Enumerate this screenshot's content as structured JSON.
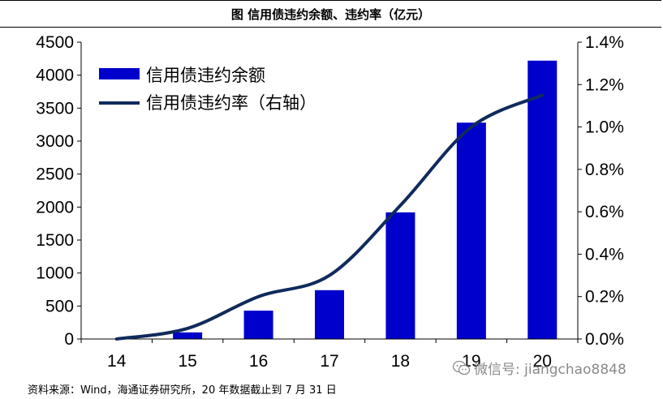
{
  "title": "图  信用债违约余额、违约率（亿元）",
  "source": "资料来源：Wind，海通证券研究所，20 年数据截止到 7 月 31 日",
  "watermark": "微信号: jiangchao8848",
  "chart_data": {
    "type": "bar",
    "categories": [
      "14",
      "15",
      "16",
      "17",
      "18",
      "19",
      "20"
    ],
    "series": [
      {
        "name": "信用债违约余额",
        "type": "bar",
        "axis": "left",
        "color": "#0000cc",
        "values": [
          0,
          100,
          430,
          740,
          1920,
          3280,
          4220
        ]
      },
      {
        "name": "信用债违约率（右轴）",
        "type": "line",
        "axis": "right",
        "color": "#102a5c",
        "values": [
          0.0,
          0.05,
          0.2,
          0.3,
          0.63,
          1.0,
          1.15
        ]
      }
    ],
    "ylim_left": [
      0,
      4500
    ],
    "yticks_left": [
      "0",
      "500",
      "1000",
      "1500",
      "2000",
      "2500",
      "3000",
      "3500",
      "4000",
      "4500"
    ],
    "ylim_right": [
      0,
      1.4
    ],
    "yticks_right": [
      "0.0%",
      "0.2%",
      "0.4%",
      "0.6%",
      "0.8%",
      "1.0%",
      "1.2%",
      "1.4%"
    ],
    "legend_position": "top-left",
    "grid": false
  }
}
